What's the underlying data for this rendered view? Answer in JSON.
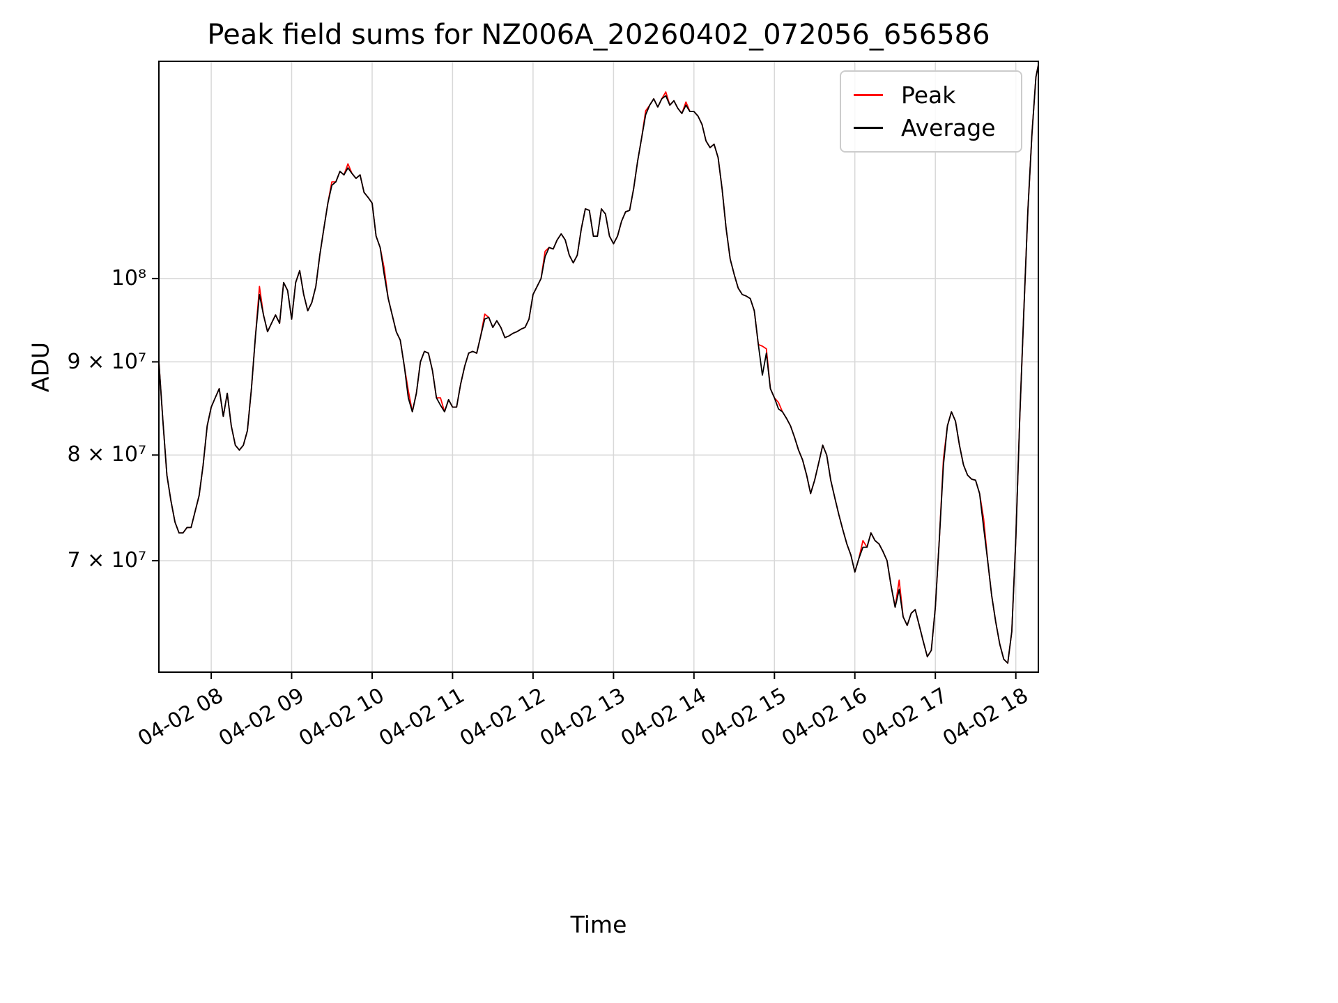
{
  "figure": {
    "background": "#ffffff"
  },
  "chart_data": {
    "type": "line",
    "title": "Peak field sums for NZ006A_20260402_072056_656586",
    "xlabel": "Time",
    "ylabel": "ADU",
    "y_scale": "log",
    "grid": true,
    "legend_position": "upper right",
    "colors": {
      "peak": "#ff0000",
      "average": "#000000",
      "grid": "#d8d8d8",
      "axes": "#000000"
    },
    "value_scale": 10000000,
    "xlim_hours": [
      7.35,
      18.28
    ],
    "ylim_adu": [
      60800000,
      131600000
    ],
    "yticks": [
      {
        "value": 100000000,
        "label": "10⁸"
      },
      {
        "value": 90000000,
        "label": "9 × 10⁷"
      },
      {
        "value": 80000000,
        "label": "8 × 10⁷"
      },
      {
        "value": 70000000,
        "label": "7 × 10⁷"
      }
    ],
    "xticks": [
      {
        "hour": 8,
        "label": "04-02 08"
      },
      {
        "hour": 9,
        "label": "04-02 09"
      },
      {
        "hour": 10,
        "label": "04-02 10"
      },
      {
        "hour": 11,
        "label": "04-02 11"
      },
      {
        "hour": 12,
        "label": "04-02 12"
      },
      {
        "hour": 13,
        "label": "04-02 13"
      },
      {
        "hour": 14,
        "label": "04-02 14"
      },
      {
        "hour": 15,
        "label": "04-02 15"
      },
      {
        "hour": 16,
        "label": "04-02 16"
      },
      {
        "hour": 17,
        "label": "04-02 17"
      },
      {
        "hour": 18,
        "label": "04-02 18"
      }
    ],
    "x_hours": [
      7.35,
      7.4,
      7.45,
      7.5,
      7.55,
      7.6,
      7.65,
      7.7,
      7.75,
      7.8,
      7.85,
      7.9,
      7.95,
      8.0,
      8.05,
      8.1,
      8.15,
      8.2,
      8.25,
      8.3,
      8.35,
      8.4,
      8.45,
      8.5,
      8.55,
      8.6,
      8.65,
      8.7,
      8.75,
      8.8,
      8.85,
      8.9,
      8.95,
      9.0,
      9.05,
      9.1,
      9.15,
      9.2,
      9.25,
      9.3,
      9.35,
      9.4,
      9.45,
      9.5,
      9.55,
      9.6,
      9.65,
      9.7,
      9.75,
      9.8,
      9.85,
      9.9,
      9.95,
      10.0,
      10.05,
      10.1,
      10.15,
      10.2,
      10.25,
      10.3,
      10.35,
      10.4,
      10.45,
      10.5,
      10.55,
      10.6,
      10.65,
      10.7,
      10.75,
      10.8,
      10.85,
      10.9,
      10.95,
      11.0,
      11.05,
      11.1,
      11.15,
      11.2,
      11.25,
      11.3,
      11.35,
      11.4,
      11.45,
      11.5,
      11.55,
      11.6,
      11.65,
      11.7,
      11.75,
      11.8,
      11.85,
      11.9,
      11.95,
      12.0,
      12.05,
      12.1,
      12.15,
      12.2,
      12.25,
      12.3,
      12.35,
      12.4,
      12.45,
      12.5,
      12.55,
      12.6,
      12.65,
      12.7,
      12.75,
      12.8,
      12.85,
      12.9,
      12.95,
      13.0,
      13.05,
      13.1,
      13.15,
      13.2,
      13.25,
      13.3,
      13.35,
      13.4,
      13.45,
      13.5,
      13.55,
      13.6,
      13.65,
      13.7,
      13.75,
      13.8,
      13.85,
      13.9,
      13.95,
      14.0,
      14.05,
      14.1,
      14.15,
      14.2,
      14.25,
      14.3,
      14.35,
      14.4,
      14.45,
      14.5,
      14.55,
      14.6,
      14.65,
      14.7,
      14.75,
      14.8,
      14.85,
      14.9,
      14.95,
      15.0,
      15.05,
      15.1,
      15.15,
      15.2,
      15.25,
      15.3,
      15.35,
      15.4,
      15.45,
      15.5,
      15.55,
      15.6,
      15.65,
      15.7,
      15.75,
      15.8,
      15.85,
      15.9,
      15.95,
      16.0,
      16.05,
      16.1,
      16.15,
      16.2,
      16.25,
      16.3,
      16.35,
      16.4,
      16.45,
      16.5,
      16.55,
      16.6,
      16.65,
      16.7,
      16.75,
      16.8,
      16.85,
      16.9,
      16.95,
      17.0,
      17.05,
      17.1,
      17.15,
      17.2,
      17.25,
      17.3,
      17.35,
      17.4,
      17.45,
      17.5,
      17.55,
      17.6,
      17.65,
      17.7,
      17.75,
      17.8,
      17.85,
      17.9,
      17.95,
      18.0,
      18.05,
      18.1,
      18.15,
      18.2,
      18.25,
      18.28
    ],
    "series": [
      {
        "name": "Peak",
        "color_key": "peak",
        "values_e7": [
          9.0,
          8.35,
          7.8,
          7.55,
          7.35,
          7.25,
          7.25,
          7.3,
          7.3,
          7.45,
          7.6,
          7.9,
          8.3,
          8.5,
          8.6,
          8.7,
          8.4,
          8.65,
          8.3,
          8.1,
          8.05,
          8.1,
          8.25,
          8.7,
          9.3,
          9.9,
          9.55,
          9.35,
          9.45,
          9.55,
          9.45,
          9.95,
          9.85,
          9.5,
          9.95,
          10.1,
          9.8,
          9.6,
          9.7,
          9.9,
          10.3,
          10.65,
          11.0,
          11.3,
          11.3,
          11.45,
          11.4,
          11.56,
          11.42,
          11.35,
          11.4,
          11.15,
          11.08,
          11.0,
          10.55,
          10.4,
          10.13,
          9.75,
          9.55,
          9.35,
          9.25,
          8.95,
          8.68,
          8.45,
          8.65,
          9.0,
          9.12,
          9.1,
          8.9,
          8.6,
          8.6,
          8.45,
          8.58,
          8.5,
          8.5,
          8.75,
          8.95,
          9.1,
          9.12,
          9.1,
          9.3,
          9.56,
          9.52,
          9.4,
          9.48,
          9.4,
          9.28,
          9.3,
          9.33,
          9.35,
          9.38,
          9.4,
          9.5,
          9.8,
          9.9,
          10.0,
          10.35,
          10.4,
          10.38,
          10.5,
          10.58,
          10.5,
          10.3,
          10.2,
          10.3,
          10.65,
          10.92,
          10.9,
          10.55,
          10.55,
          10.92,
          10.85,
          10.55,
          10.45,
          10.55,
          10.75,
          10.88,
          10.9,
          11.2,
          11.6,
          11.95,
          12.36,
          12.45,
          12.55,
          12.42,
          12.55,
          12.66,
          12.45,
          12.52,
          12.4,
          12.32,
          12.5,
          12.35,
          12.35,
          12.28,
          12.15,
          11.9,
          11.8,
          11.85,
          11.65,
          11.2,
          10.65,
          10.25,
          10.05,
          9.88,
          9.8,
          9.78,
          9.75,
          9.6,
          9.2,
          9.18,
          9.15,
          8.7,
          8.6,
          8.55,
          8.45,
          8.38,
          8.3,
          8.18,
          8.05,
          7.95,
          7.8,
          7.62,
          7.75,
          7.92,
          8.1,
          8.0,
          7.75,
          7.58,
          7.42,
          7.28,
          7.15,
          7.05,
          6.9,
          7.02,
          7.18,
          7.12,
          7.25,
          7.18,
          7.15,
          7.08,
          7.0,
          6.78,
          6.6,
          6.83,
          6.52,
          6.45,
          6.55,
          6.58,
          6.45,
          6.32,
          6.2,
          6.25,
          6.6,
          7.2,
          7.96,
          8.3,
          8.45,
          8.35,
          8.1,
          7.9,
          7.8,
          7.76,
          7.75,
          7.62,
          7.38,
          7.0,
          6.7,
          6.48,
          6.3,
          6.18,
          6.15,
          6.4,
          7.2,
          8.4,
          9.6,
          10.9,
          12.0,
          12.9,
          13.1
        ]
      },
      {
        "name": "Average",
        "color_key": "average",
        "values_e7": [
          9.0,
          8.35,
          7.8,
          7.55,
          7.35,
          7.25,
          7.25,
          7.3,
          7.3,
          7.45,
          7.6,
          7.9,
          8.3,
          8.5,
          8.6,
          8.7,
          8.4,
          8.65,
          8.3,
          8.1,
          8.05,
          8.1,
          8.25,
          8.7,
          9.3,
          9.8,
          9.55,
          9.35,
          9.45,
          9.55,
          9.45,
          9.95,
          9.85,
          9.5,
          9.95,
          10.1,
          9.8,
          9.6,
          9.7,
          9.9,
          10.3,
          10.65,
          11.0,
          11.25,
          11.3,
          11.45,
          11.4,
          11.5,
          11.42,
          11.35,
          11.4,
          11.15,
          11.08,
          11.0,
          10.55,
          10.4,
          10.05,
          9.75,
          9.55,
          9.35,
          9.25,
          8.95,
          8.6,
          8.45,
          8.65,
          9.0,
          9.12,
          9.1,
          8.9,
          8.6,
          8.52,
          8.45,
          8.58,
          8.5,
          8.5,
          8.75,
          8.95,
          9.1,
          9.12,
          9.1,
          9.3,
          9.5,
          9.52,
          9.4,
          9.48,
          9.4,
          9.28,
          9.3,
          9.33,
          9.35,
          9.38,
          9.4,
          9.5,
          9.8,
          9.9,
          10.0,
          10.28,
          10.4,
          10.38,
          10.5,
          10.58,
          10.5,
          10.3,
          10.2,
          10.3,
          10.65,
          10.92,
          10.9,
          10.55,
          10.55,
          10.92,
          10.85,
          10.55,
          10.45,
          10.55,
          10.75,
          10.88,
          10.9,
          11.2,
          11.6,
          11.95,
          12.3,
          12.45,
          12.55,
          12.42,
          12.55,
          12.6,
          12.45,
          12.52,
          12.4,
          12.32,
          12.45,
          12.35,
          12.35,
          12.28,
          12.15,
          11.9,
          11.8,
          11.85,
          11.65,
          11.2,
          10.65,
          10.25,
          10.05,
          9.88,
          9.8,
          9.78,
          9.75,
          9.6,
          9.2,
          8.85,
          9.1,
          8.7,
          8.6,
          8.48,
          8.45,
          8.38,
          8.3,
          8.18,
          8.05,
          7.95,
          7.8,
          7.62,
          7.75,
          7.92,
          8.1,
          8.0,
          7.75,
          7.58,
          7.42,
          7.28,
          7.15,
          7.05,
          6.9,
          7.02,
          7.12,
          7.12,
          7.25,
          7.18,
          7.15,
          7.08,
          7.0,
          6.78,
          6.6,
          6.75,
          6.52,
          6.45,
          6.55,
          6.58,
          6.45,
          6.32,
          6.2,
          6.25,
          6.6,
          7.2,
          7.9,
          8.3,
          8.45,
          8.35,
          8.1,
          7.9,
          7.8,
          7.76,
          7.75,
          7.62,
          7.3,
          7.0,
          6.7,
          6.48,
          6.3,
          6.18,
          6.15,
          6.4,
          7.2,
          8.4,
          9.6,
          10.9,
          12.0,
          12.9,
          13.1
        ]
      }
    ]
  }
}
